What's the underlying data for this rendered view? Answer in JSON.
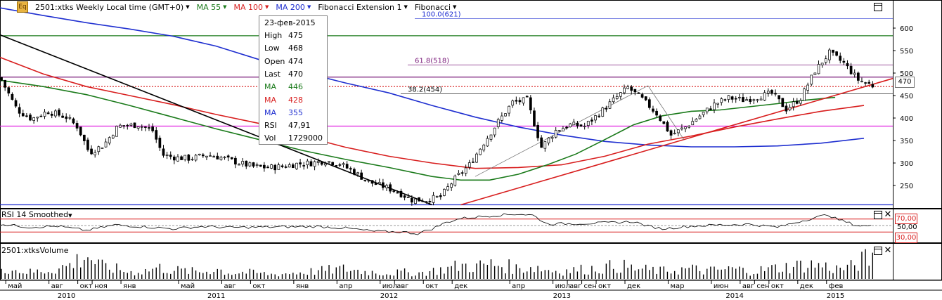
{
  "header": {
    "logo": "Eq",
    "items": [
      {
        "label": "2501:xtks Weekly Local time (GMT+0)",
        "color": "#000000"
      },
      {
        "label": "MA 55",
        "color": "#1a7a1a"
      },
      {
        "label": "MA 100",
        "color": "#d81e1e"
      },
      {
        "label": "MA 200",
        "color": "#1f2fd0"
      },
      {
        "label": "Fibonacci Extension 1",
        "color": "#000000"
      },
      {
        "label": "Fibonacci",
        "color": "#000000"
      }
    ]
  },
  "tooltip": {
    "date": "23-фев-2015",
    "rows": [
      {
        "k": "High",
        "v": "475",
        "color": "#000000"
      },
      {
        "k": "Low",
        "v": "468",
        "color": "#000000"
      },
      {
        "k": "Open",
        "v": "474",
        "color": "#000000"
      },
      {
        "k": "Last",
        "v": "470",
        "color": "#000000"
      },
      {
        "k": "MA",
        "v": "446",
        "color": "#1a7a1a"
      },
      {
        "k": "MA",
        "v": "428",
        "color": "#d81e1e"
      },
      {
        "k": "MA",
        "v": "355",
        "color": "#1f2fd0"
      },
      {
        "k": "RSI",
        "v": "47,91",
        "color": "#000000"
      },
      {
        "k": "Vol",
        "v": "1729000",
        "color": "#000000"
      }
    ]
  },
  "rsi_label": "RSI 14 Smoothed",
  "volume_label": "2501:xtksVolume",
  "last_price": "470",
  "rsi_levels": [
    "70,00",
    "50,00",
    "30,00"
  ],
  "fib_labels": {
    "f100": "100.0(621)",
    "f618": "61.8(518)",
    "f382": "38.2(454)"
  },
  "chart_data": {
    "type": "candlestick",
    "title": "2501:xtks Weekly Local time (GMT+0)",
    "ylim": [
      200,
      650
    ],
    "y_ticks": [
      250,
      300,
      350,
      400,
      450,
      500,
      550,
      600
    ],
    "months": [
      {
        "label": "май",
        "t": 0.4
      },
      {
        "label": "авг",
        "t": 3.4
      },
      {
        "label": "окт",
        "t": 5.4
      },
      {
        "label": "ноя",
        "t": 6.4
      },
      {
        "label": "янв",
        "t": 8.4
      },
      {
        "label": "май",
        "t": 12.4
      },
      {
        "label": "авг",
        "t": 15.4
      },
      {
        "label": "окт",
        "t": 17.4
      },
      {
        "label": "янв",
        "t": 20.4
      },
      {
        "label": "апр",
        "t": 23.4
      },
      {
        "label": "июл",
        "t": 26.4
      },
      {
        "label": "авг",
        "t": 27.4
      },
      {
        "label": "окт",
        "t": 29.4
      },
      {
        "label": "дек",
        "t": 31.4
      },
      {
        "label": "апр",
        "t": 35.4
      },
      {
        "label": "июл",
        "t": 38.4
      },
      {
        "label": "авг",
        "t": 39.4
      },
      {
        "label": "сен",
        "t": 40.4
      },
      {
        "label": "окт",
        "t": 41.4
      },
      {
        "label": "дек",
        "t": 43.4
      },
      {
        "label": "мар",
        "t": 46.4
      },
      {
        "label": "июн",
        "t": 49.4
      },
      {
        "label": "авг",
        "t": 51.4
      },
      {
        "label": "сен",
        "t": 52.4
      },
      {
        "label": "окт",
        "t": 53.4
      },
      {
        "label": "дек",
        "t": 55.4
      },
      {
        "label": "фев",
        "t": 57.4
      }
    ],
    "years": [
      {
        "label": "2010",
        "t": 4.0
      },
      {
        "label": "2011",
        "t": 14.4
      },
      {
        "label": "2012",
        "t": 26.4
      },
      {
        "label": "2013",
        "t": 38.4
      },
      {
        "label": "2014",
        "t": 50.4
      },
      {
        "label": "2015",
        "t": 57.4
      }
    ],
    "price_path": [
      [
        0,
        490
      ],
      [
        1.2,
        418
      ],
      [
        2.2,
        398
      ],
      [
        3.3,
        415
      ],
      [
        4.6,
        402
      ],
      [
        5.4,
        380
      ],
      [
        6.2,
        323
      ],
      [
        7.2,
        340
      ],
      [
        8.2,
        382
      ],
      [
        9.6,
        385
      ],
      [
        10.6,
        372
      ],
      [
        11.3,
        318
      ],
      [
        12.2,
        312
      ],
      [
        13.2,
        310
      ],
      [
        14.4,
        318
      ],
      [
        15.4,
        312
      ],
      [
        16.6,
        300
      ],
      [
        17.6,
        292
      ],
      [
        18.6,
        290
      ],
      [
        19.6,
        292
      ],
      [
        20.6,
        298
      ],
      [
        21.6,
        300
      ],
      [
        22.6,
        305
      ],
      [
        23.6,
        298
      ],
      [
        24.6,
        280
      ],
      [
        25.6,
        258
      ],
      [
        26.6,
        248
      ],
      [
        27.6,
        236
      ],
      [
        28.6,
        218
      ],
      [
        29.6,
        218
      ],
      [
        30.6,
        225
      ],
      [
        31.6,
        265
      ],
      [
        32.6,
        296
      ],
      [
        33.6,
        345
      ],
      [
        34.6,
        392
      ],
      [
        35.6,
        435
      ],
      [
        36.6,
        440
      ],
      [
        37.6,
        335
      ],
      [
        38.6,
        372
      ],
      [
        39.6,
        385
      ],
      [
        40.6,
        382
      ],
      [
        41.6,
        410
      ],
      [
        42.6,
        440
      ],
      [
        43.6,
        468
      ],
      [
        44.6,
        442
      ],
      [
        45.6,
        410
      ],
      [
        46.6,
        362
      ],
      [
        47.6,
        380
      ],
      [
        48.6,
        405
      ],
      [
        49.6,
        430
      ],
      [
        50.6,
        445
      ],
      [
        51.6,
        440
      ],
      [
        52.6,
        447
      ],
      [
        53.6,
        455
      ],
      [
        54.6,
        420
      ],
      [
        55.6,
        444
      ],
      [
        56.6,
        505
      ],
      [
        57.6,
        545
      ],
      [
        58.6,
        522
      ],
      [
        59.6,
        485
      ],
      [
        60.6,
        472
      ]
    ],
    "ma55": [
      [
        0,
        484
      ],
      [
        3,
        470
      ],
      [
        6,
        452
      ],
      [
        9,
        428
      ],
      [
        12,
        402
      ],
      [
        15,
        376
      ],
      [
        18,
        352
      ],
      [
        21,
        328
      ],
      [
        24,
        308
      ],
      [
        27,
        290
      ],
      [
        30,
        270
      ],
      [
        32,
        262
      ],
      [
        34,
        262
      ],
      [
        36,
        275
      ],
      [
        38,
        296
      ],
      [
        40,
        320
      ],
      [
        42,
        352
      ],
      [
        44,
        385
      ],
      [
        46,
        405
      ],
      [
        48,
        415
      ],
      [
        50,
        418
      ],
      [
        52,
        425
      ],
      [
        54,
        432
      ],
      [
        56,
        440
      ],
      [
        58,
        446
      ]
    ],
    "ma100": [
      [
        0,
        535
      ],
      [
        3,
        498
      ],
      [
        6,
        470
      ],
      [
        9,
        450
      ],
      [
        12,
        430
      ],
      [
        15,
        408
      ],
      [
        18,
        388
      ],
      [
        21,
        360
      ],
      [
        24,
        335
      ],
      [
        27,
        315
      ],
      [
        30,
        300
      ],
      [
        33,
        288
      ],
      [
        36,
        290
      ],
      [
        39,
        296
      ],
      [
        42,
        315
      ],
      [
        45,
        342
      ],
      [
        48,
        360
      ],
      [
        51,
        380
      ],
      [
        54,
        398
      ],
      [
        57,
        415
      ],
      [
        60,
        428
      ]
    ],
    "ma200": [
      [
        0,
        645
      ],
      [
        3,
        628
      ],
      [
        6,
        612
      ],
      [
        9,
        598
      ],
      [
        12,
        582
      ],
      [
        15,
        560
      ],
      [
        18,
        530
      ],
      [
        21,
        502
      ],
      [
        24,
        478
      ],
      [
        27,
        456
      ],
      [
        30,
        428
      ],
      [
        33,
        402
      ],
      [
        36,
        380
      ],
      [
        39,
        362
      ],
      [
        42,
        348
      ],
      [
        45,
        340
      ],
      [
        48,
        336
      ],
      [
        51,
        336
      ],
      [
        54,
        338
      ],
      [
        57,
        344
      ],
      [
        60,
        355
      ]
    ],
    "hlines": [
      {
        "y": 583,
        "color": "#1a7a1a",
        "style": "solid"
      },
      {
        "y": 491,
        "color": "#7a1a7a",
        "style": "solid"
      },
      {
        "y": 470,
        "color": "#d81e1e",
        "style": "dotted"
      },
      {
        "y": 382,
        "color": "#e020e0",
        "style": "solid"
      },
      {
        "y": 207,
        "color": "#1f2fd0",
        "style": "solid"
      }
    ],
    "trendlines": [
      {
        "from": [
          0,
          585
        ],
        "to": [
          30,
          207
        ],
        "color": "#000000"
      },
      {
        "from": [
          32,
          207
        ],
        "to": [
          62,
          488
        ],
        "color": "#d81e1e"
      },
      {
        "from": [
          33,
          270
        ],
        "to": [
          45,
          472
        ],
        "color": "#777777"
      },
      {
        "from": [
          45,
          472
        ],
        "to": [
          47.5,
          352
        ],
        "color": "#777777"
      }
    ],
    "fib_levels": [
      {
        "label": "100.0(621)",
        "y": 621,
        "color": "#1f2fd0"
      },
      {
        "label": "61.8(518)",
        "y": 518,
        "color": "#7a1a7a"
      },
      {
        "label": "38.2(454)",
        "y": 454,
        "color": "#000000"
      }
    ],
    "rsi_ylim": [
      0,
      100
    ],
    "rsi_bands": [
      70,
      50,
      30
    ],
    "rsi_series": [
      [
        0,
        55
      ],
      [
        2,
        45
      ],
      [
        4,
        48
      ],
      [
        6,
        35
      ],
      [
        8,
        52
      ],
      [
        10,
        46
      ],
      [
        12,
        40
      ],
      [
        14,
        47
      ],
      [
        16,
        44
      ],
      [
        18,
        45
      ],
      [
        20,
        46
      ],
      [
        22,
        47
      ],
      [
        24,
        42
      ],
      [
        26,
        32
      ],
      [
        28,
        30
      ],
      [
        29,
        25
      ],
      [
        30,
        40
      ],
      [
        31,
        60
      ],
      [
        32,
        72
      ],
      [
        34,
        80
      ],
      [
        36,
        86
      ],
      [
        37,
        82
      ],
      [
        38,
        55
      ],
      [
        40,
        56
      ],
      [
        42,
        58
      ],
      [
        44,
        62
      ],
      [
        45,
        48
      ],
      [
        46,
        40
      ],
      [
        48,
        48
      ],
      [
        50,
        52
      ],
      [
        52,
        54
      ],
      [
        54,
        45
      ],
      [
        56,
        68
      ],
      [
        57.5,
        84
      ],
      [
        58,
        72
      ],
      [
        59.5,
        50
      ],
      [
        60.6,
        47.91
      ]
    ],
    "volume_ylim": [
      0,
      2300000
    ],
    "volume": [
      [
        0,
        1200000
      ],
      [
        1,
        800000
      ],
      [
        2,
        600000
      ],
      [
        3,
        700000
      ],
      [
        4,
        900000
      ],
      [
        5,
        1300000
      ],
      [
        6,
        2200000
      ],
      [
        6.5,
        1600000
      ],
      [
        7,
        1100000
      ],
      [
        8,
        900000
      ],
      [
        9,
        600000
      ],
      [
        10,
        700000
      ],
      [
        11,
        1000000
      ],
      [
        12,
        800000
      ],
      [
        13,
        700000
      ],
      [
        14,
        600000
      ],
      [
        15,
        900000
      ],
      [
        16,
        500000
      ],
      [
        17,
        600000
      ],
      [
        18,
        500000
      ],
      [
        19,
        400000
      ],
      [
        20,
        500000
      ],
      [
        21,
        600000
      ],
      [
        22,
        700000
      ],
      [
        23,
        800000
      ],
      [
        24,
        900000
      ],
      [
        25,
        700000
      ],
      [
        26,
        600000
      ],
      [
        27,
        500000
      ],
      [
        28,
        600000
      ],
      [
        29,
        500000
      ],
      [
        30,
        700000
      ],
      [
        31,
        900000
      ],
      [
        32,
        1200000
      ],
      [
        33,
        1100000
      ],
      [
        34,
        1300000
      ],
      [
        35,
        1200000
      ],
      [
        36,
        900000
      ],
      [
        37,
        1100000
      ],
      [
        38,
        800000
      ],
      [
        39,
        700000
      ],
      [
        40,
        800000
      ],
      [
        41,
        900000
      ],
      [
        42,
        1000000
      ],
      [
        43,
        1200000
      ],
      [
        44,
        900000
      ],
      [
        45,
        800000
      ],
      [
        46,
        700000
      ],
      [
        47,
        800000
      ],
      [
        48,
        900000
      ],
      [
        49,
        700000
      ],
      [
        50,
        800000
      ],
      [
        51,
        900000
      ],
      [
        52,
        700000
      ],
      [
        53,
        800000
      ],
      [
        54,
        1000000
      ],
      [
        55,
        1100000
      ],
      [
        56,
        1300000
      ],
      [
        57,
        1200000
      ],
      [
        58,
        900000
      ],
      [
        59,
        1000000
      ],
      [
        60,
        1729000
      ]
    ]
  }
}
